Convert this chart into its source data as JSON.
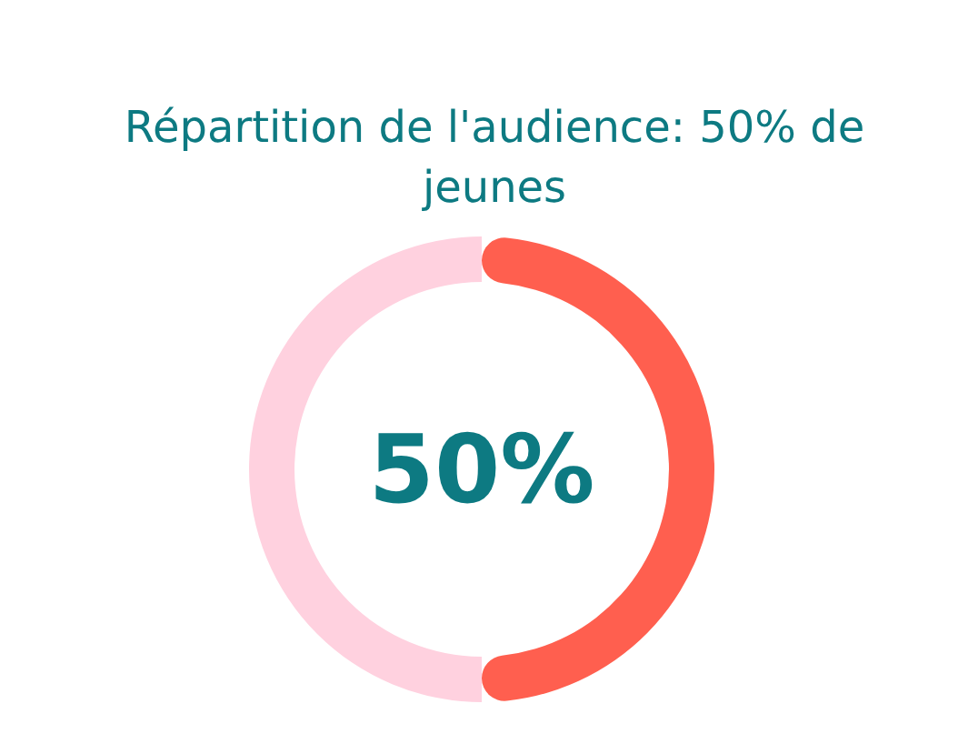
{
  "chart_data": {
    "type": "donut",
    "title": "Répartition de l'audience: 50% de jeunes",
    "categories": [
      null,
      null
    ],
    "values": [
      50,
      50
    ],
    "colors": [
      "#ff5f4f",
      "#ffd1df"
    ],
    "annotations": [
      "50%"
    ]
  }
}
